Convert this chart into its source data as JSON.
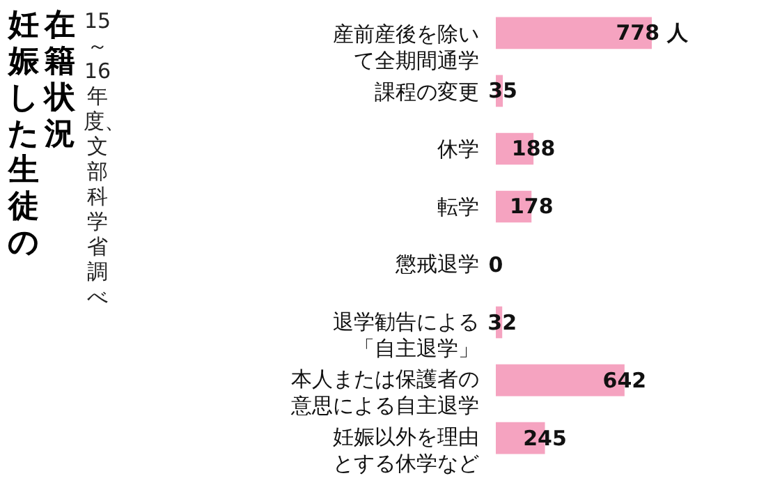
{
  "chart_data": {
    "type": "bar",
    "orientation": "horizontal",
    "title": "妊娠した生徒の在籍状況",
    "subtitle": "15～16年度、文部科学省調べ",
    "categories": [
      "産前産後を除いて全期間通学",
      "課程の変更",
      "休学",
      "転学",
      "懲戒退学",
      "退学勧告による「自主退学」",
      "本人または保護者の意思による自主退学",
      "妊娠以外を理由とする休学など"
    ],
    "values": [
      778,
      35,
      188,
      178,
      0,
      32,
      642,
      245
    ],
    "value_labels": [
      "778 人",
      "35",
      "188",
      "178",
      "0",
      "32",
      "642",
      "245"
    ],
    "color": "#f5a3c0"
  }
}
